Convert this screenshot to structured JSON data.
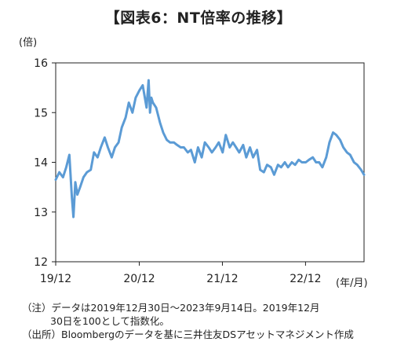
{
  "title": "【図表6：NT倍率の推移】",
  "chart_data": {
    "type": "line",
    "title": "【図表6：NT倍率の推移】",
    "ylabel": "(倍)",
    "xlabel": "(年/月)",
    "ylim": [
      12,
      16
    ],
    "yticks": [
      "12",
      "13",
      "14",
      "15",
      "16"
    ],
    "xticks": [
      "19/12",
      "20/12",
      "21/12",
      "22/12"
    ],
    "x_range": [
      "2019-12-30",
      "2023-09-14"
    ],
    "grid": false,
    "color": "#5b9bd5",
    "series": [
      {
        "x": [
          "2019-12-30",
          "2020-01-15",
          "2020-01-31",
          "2020-02-14",
          "2020-02-28",
          "2020-03-10",
          "2020-03-17",
          "2020-03-25",
          "2020-04-03",
          "2020-04-15",
          "2020-04-30",
          "2020-05-15",
          "2020-06-01",
          "2020-06-15",
          "2020-07-01",
          "2020-07-15",
          "2020-08-01",
          "2020-08-15",
          "2020-09-01",
          "2020-09-15",
          "2020-10-01",
          "2020-10-15",
          "2020-11-01",
          "2020-11-15",
          "2020-12-01",
          "2020-12-15",
          "2021-01-01",
          "2021-01-15",
          "2021-02-01",
          "2021-02-10",
          "2021-02-16",
          "2021-02-22",
          "2021-03-01",
          "2021-03-15",
          "2021-04-01",
          "2021-04-15",
          "2021-05-01",
          "2021-05-15",
          "2021-06-01",
          "2021-06-15",
          "2021-07-01",
          "2021-07-15",
          "2021-08-01",
          "2021-08-15",
          "2021-09-01",
          "2021-09-15",
          "2021-10-01",
          "2021-10-15",
          "2021-11-01",
          "2021-11-15",
          "2021-12-01",
          "2021-12-15",
          "2022-01-01",
          "2022-01-15",
          "2022-02-01",
          "2022-02-15",
          "2022-03-01",
          "2022-03-15",
          "2022-04-01",
          "2022-04-15",
          "2022-05-01",
          "2022-05-15",
          "2022-06-01",
          "2022-06-15",
          "2022-07-01",
          "2022-07-15",
          "2022-08-01",
          "2022-08-15",
          "2022-09-01",
          "2022-09-15",
          "2022-10-01",
          "2022-10-15",
          "2022-11-01",
          "2022-11-15",
          "2022-12-01",
          "2022-12-15",
          "2023-01-01",
          "2023-01-15",
          "2023-02-01",
          "2023-02-15",
          "2023-03-01",
          "2023-03-15",
          "2023-04-01",
          "2023-04-15",
          "2023-05-01",
          "2023-05-15",
          "2023-06-01",
          "2023-06-15",
          "2023-07-01",
          "2023-07-15",
          "2023-08-01",
          "2023-08-15",
          "2023-09-01",
          "2023-09-14"
        ],
        "y": [
          13.65,
          13.8,
          13.7,
          13.9,
          14.15,
          13.3,
          12.9,
          13.6,
          13.35,
          13.5,
          13.7,
          13.8,
          13.85,
          14.2,
          14.1,
          14.3,
          14.5,
          14.3,
          14.1,
          14.3,
          14.4,
          14.7,
          14.9,
          15.2,
          15.0,
          15.3,
          15.45,
          15.55,
          15.1,
          15.65,
          15.0,
          15.3,
          15.2,
          15.1,
          14.8,
          14.6,
          14.45,
          14.4,
          14.4,
          14.35,
          14.3,
          14.3,
          14.2,
          14.25,
          14.0,
          14.3,
          14.1,
          14.4,
          14.3,
          14.2,
          14.3,
          14.4,
          14.2,
          14.55,
          14.3,
          14.4,
          14.3,
          14.2,
          14.35,
          14.1,
          14.3,
          14.1,
          14.25,
          13.85,
          13.8,
          13.95,
          13.9,
          13.75,
          13.95,
          13.9,
          14.0,
          13.9,
          14.0,
          13.95,
          14.05,
          14.0,
          14.0,
          14.05,
          14.1,
          14.0,
          14.0,
          13.9,
          14.1,
          14.4,
          14.6,
          14.55,
          14.45,
          14.3,
          14.2,
          14.15,
          14.0,
          13.95,
          13.85,
          13.75
        ]
      }
    ]
  },
  "notes": {
    "note_tag": "（注）",
    "note_line1": "データは2019年12月30日～2023年9月14日。2019年12月",
    "note_line2": "30日を100として指数化。",
    "source_tag": "（出所）",
    "source_text": "Bloombergのデータを基に三井住友DSアセットマネジメント作成"
  }
}
